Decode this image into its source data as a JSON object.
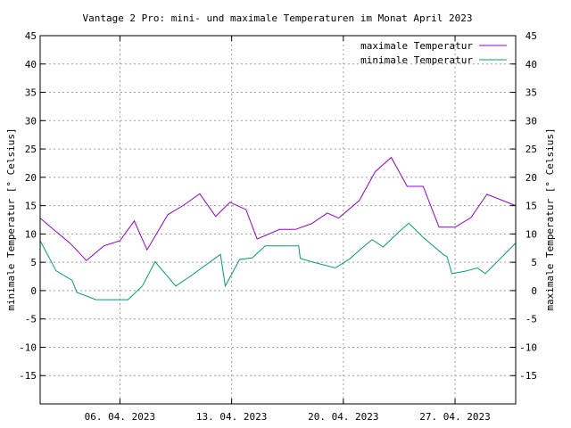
{
  "chart_data": {
    "type": "line",
    "title": "Vantage 2 Pro: mini- und maximale Temperaturen im Monat April 2023",
    "ylabel_left": "minimale Temperatur [° Celsius]",
    "ylabel_right": "maximale Temperatur [° Celsius]",
    "ylim": [
      -20,
      45
    ],
    "yticks": [
      -15,
      -10,
      -5,
      0,
      5,
      10,
      15,
      20,
      25,
      30,
      35,
      40,
      45
    ],
    "xlim": [
      1.0,
      30.8
    ],
    "xticks": [
      {
        "day": 6,
        "label": "06. 04. 2023"
      },
      {
        "day": 13,
        "label": "13. 04. 2023"
      },
      {
        "day": 20,
        "label": "20. 04. 2023"
      },
      {
        "day": 27,
        "label": "27. 04. 2023"
      }
    ],
    "x_unit": "day of April 2023",
    "grid": true,
    "legend_position": "top-right",
    "series": [
      {
        "name": "maximale Temperatur",
        "color": "#9400d3",
        "points": [
          [
            1.0,
            12.8
          ],
          [
            2.0,
            10.4
          ],
          [
            2.9,
            8.3
          ],
          [
            3.9,
            5.3
          ],
          [
            5.0,
            7.9
          ],
          [
            6.0,
            8.8
          ],
          [
            6.9,
            12.3
          ],
          [
            7.7,
            7.2
          ],
          [
            9.0,
            13.4
          ],
          [
            10.0,
            15.1
          ],
          [
            11.0,
            17.1
          ],
          [
            12.0,
            13.1
          ],
          [
            12.9,
            15.6
          ],
          [
            13.9,
            14.3
          ],
          [
            14.6,
            9.1
          ],
          [
            16.0,
            10.8
          ],
          [
            17.0,
            10.8
          ],
          [
            18.0,
            11.8
          ],
          [
            19.0,
            13.7
          ],
          [
            19.7,
            12.8
          ],
          [
            21.0,
            15.9
          ],
          [
            22.0,
            21.0
          ],
          [
            23.0,
            23.5
          ],
          [
            24.0,
            18.4
          ],
          [
            25.0,
            18.4
          ],
          [
            26.0,
            11.2
          ],
          [
            27.0,
            11.2
          ],
          [
            28.0,
            12.9
          ],
          [
            29.0,
            17.0
          ],
          [
            30.8,
            15.0
          ]
        ]
      },
      {
        "name": "minimale Temperatur",
        "color": "#009e73",
        "points": [
          [
            1.0,
            8.8
          ],
          [
            2.0,
            3.5
          ],
          [
            3.0,
            1.8
          ],
          [
            3.3,
            -0.3
          ],
          [
            4.5,
            -1.6
          ],
          [
            5.3,
            -1.6
          ],
          [
            6.0,
            -1.6
          ],
          [
            6.5,
            -1.6
          ],
          [
            7.4,
            0.8
          ],
          [
            8.2,
            5.1
          ],
          [
            9.5,
            0.8
          ],
          [
            10.4,
            2.5
          ],
          [
            12.3,
            6.4
          ],
          [
            12.6,
            0.8
          ],
          [
            13.5,
            5.5
          ],
          [
            14.3,
            5.8
          ],
          [
            15.1,
            7.9
          ],
          [
            16.0,
            7.9
          ],
          [
            17.0,
            7.9
          ],
          [
            17.2,
            7.9
          ],
          [
            17.3,
            5.7
          ],
          [
            18.0,
            5.1
          ],
          [
            19.5,
            4.0
          ],
          [
            20.4,
            5.6
          ],
          [
            21.0,
            7.1
          ],
          [
            21.8,
            9.0
          ],
          [
            22.5,
            7.7
          ],
          [
            23.5,
            10.4
          ],
          [
            24.1,
            11.9
          ],
          [
            25.0,
            9.4
          ],
          [
            26.3,
            6.3
          ],
          [
            26.5,
            6.0
          ],
          [
            26.8,
            3.0
          ],
          [
            27.6,
            3.4
          ],
          [
            28.4,
            4.0
          ],
          [
            28.9,
            3.0
          ],
          [
            29.5,
            4.7
          ],
          [
            30.8,
            8.4
          ]
        ]
      }
    ]
  }
}
